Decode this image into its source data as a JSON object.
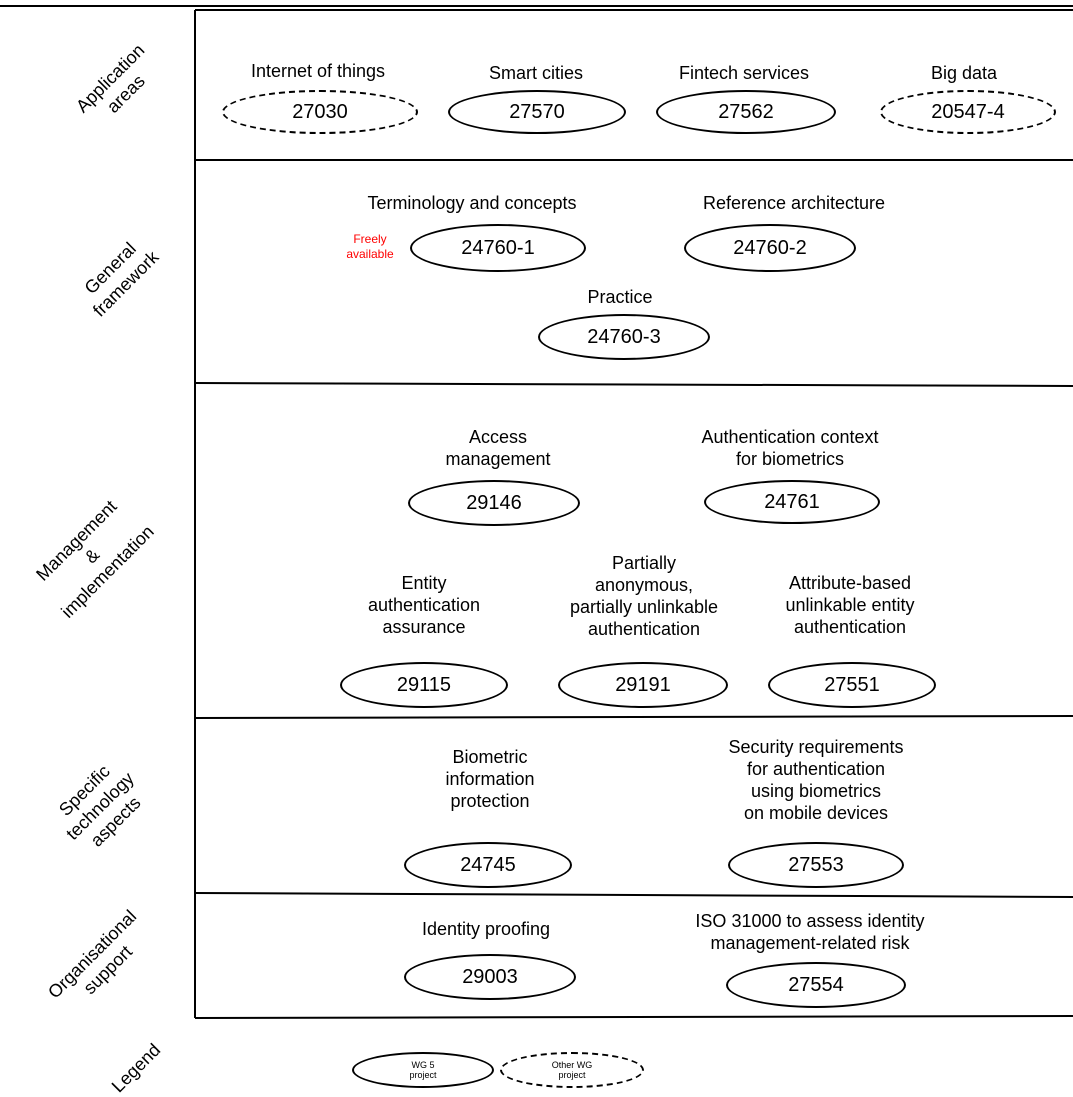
{
  "rows": [
    {
      "label": "Application areas"
    },
    {
      "label": "General framework"
    },
    {
      "label": "Management & implementation"
    },
    {
      "label": "Specific technology aspects"
    },
    {
      "label": "Organisational support"
    },
    {
      "label": "Legend"
    }
  ],
  "projects": {
    "iot": {
      "title": "Internet of things",
      "code": "27030"
    },
    "smart": {
      "title": "Smart cities",
      "code": "27570"
    },
    "fintech": {
      "title": "Fintech services",
      "code": "27562"
    },
    "bigdata": {
      "title": "Big data",
      "code": "20547-4"
    },
    "term": {
      "title": "Terminology and concepts",
      "code": "24760-1"
    },
    "refarch": {
      "title": "Reference architecture",
      "code": "24760-2"
    },
    "practice": {
      "title": "Practice",
      "code": "24760-3"
    },
    "access": {
      "title_l1": "Access",
      "title_l2": "management",
      "code": "29146"
    },
    "authctx": {
      "title_l1": "Authentication context",
      "title_l2": "for biometrics",
      "code": "24761"
    },
    "entity": {
      "title_l1": "Entity",
      "title_l2": "authentication",
      "title_l3": "assurance",
      "code": "29115"
    },
    "partial": {
      "title_l1": "Partially",
      "title_l2": "anonymous,",
      "title_l3": "partially unlinkable",
      "title_l4": "authentication",
      "code": "29191"
    },
    "attr": {
      "title_l1": "Attribute-based",
      "title_l2": "unlinkable entity",
      "title_l3": "authentication",
      "code": "27551"
    },
    "bioinfo": {
      "title_l1": "Biometric",
      "title_l2": "information",
      "title_l3": "protection",
      "code": "24745"
    },
    "secreq": {
      "title_l1": "Security requirements",
      "title_l2": "for authentication",
      "title_l3": "using biometrics",
      "title_l4": "on mobile devices",
      "code": "27553"
    },
    "proofing": {
      "title": "Identity proofing",
      "code": "29003"
    },
    "iso": {
      "title_l1": "ISO 31000 to assess identity",
      "title_l2": "management-related risk",
      "code": "27554"
    }
  },
  "freely": {
    "l1": "Freely",
    "l2": "available",
    "color": "#ff0000"
  },
  "legend": {
    "wg5_l1": "WG 5",
    "wg5_l2": "project",
    "other_l1": "Other WG",
    "other_l2": "project"
  }
}
